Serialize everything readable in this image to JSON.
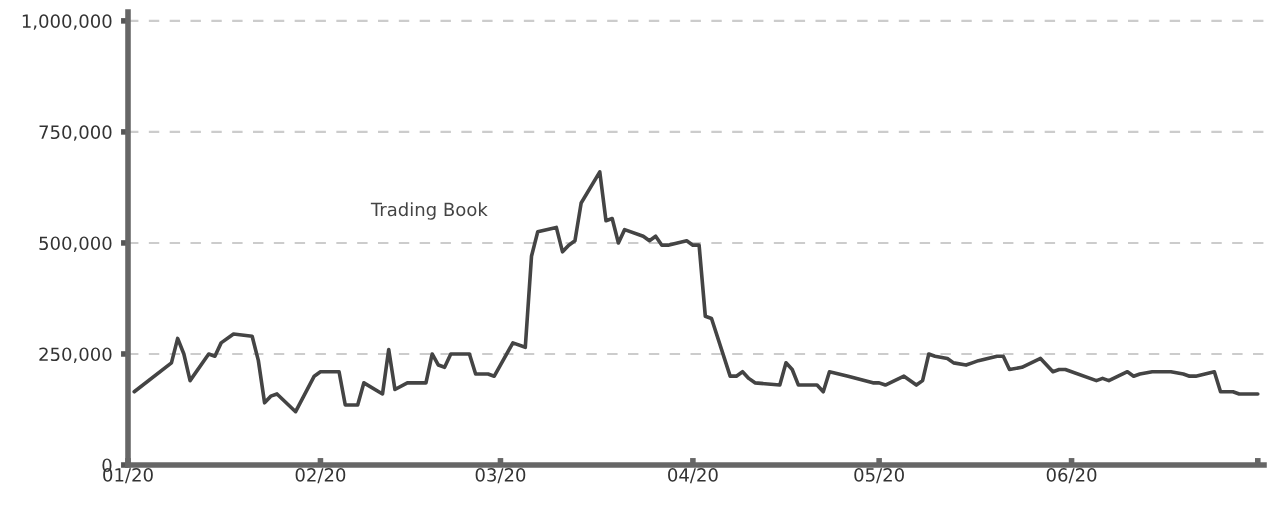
{
  "chart_data": {
    "type": "line",
    "x": [
      "2020-01-02",
      "2020-01-08",
      "2020-01-09",
      "2020-01-10",
      "2020-01-11",
      "2020-01-14",
      "2020-01-15",
      "2020-01-16",
      "2020-01-18",
      "2020-01-21",
      "2020-01-22",
      "2020-01-23",
      "2020-01-24",
      "2020-01-25",
      "2020-01-28",
      "2020-01-31",
      "2020-02-01",
      "2020-02-04",
      "2020-02-05",
      "2020-02-07",
      "2020-02-08",
      "2020-02-11",
      "2020-02-12",
      "2020-02-13",
      "2020-02-15",
      "2020-02-18",
      "2020-02-19",
      "2020-02-20",
      "2020-02-21",
      "2020-02-22",
      "2020-02-25",
      "2020-02-26",
      "2020-02-28",
      "2020-02-29",
      "2020-03-03",
      "2020-03-05",
      "2020-03-06",
      "2020-03-07",
      "2020-03-10",
      "2020-03-11",
      "2020-03-12",
      "2020-03-13",
      "2020-03-14",
      "2020-03-17",
      "2020-03-18",
      "2020-03-19",
      "2020-03-20",
      "2020-03-21",
      "2020-03-24",
      "2020-03-25",
      "2020-03-26",
      "2020-03-27",
      "2020-03-28",
      "2020-03-31",
      "2020-04-01",
      "2020-04-02",
      "2020-04-03",
      "2020-04-04",
      "2020-04-07",
      "2020-04-08",
      "2020-04-09",
      "2020-04-10",
      "2020-04-11",
      "2020-04-15",
      "2020-04-16",
      "2020-04-17",
      "2020-04-18",
      "2020-04-21",
      "2020-04-22",
      "2020-04-23",
      "2020-04-26",
      "2020-04-30",
      "2020-05-01",
      "2020-05-02",
      "2020-05-05",
      "2020-05-07",
      "2020-05-08",
      "2020-05-09",
      "2020-05-10",
      "2020-05-12",
      "2020-05-13",
      "2020-05-15",
      "2020-05-16",
      "2020-05-17",
      "2020-05-20",
      "2020-05-21",
      "2020-05-22",
      "2020-05-24",
      "2020-05-27",
      "2020-05-29",
      "2020-05-30",
      "2020-05-31",
      "2020-06-05",
      "2020-06-06",
      "2020-06-07",
      "2020-06-10",
      "2020-06-11",
      "2020-06-12",
      "2020-06-14",
      "2020-06-17",
      "2020-06-19",
      "2020-06-20",
      "2020-06-21",
      "2020-06-24",
      "2020-06-25",
      "2020-06-27",
      "2020-06-28",
      "2020-07-01"
    ],
    "series": [
      {
        "name": "Trading Book",
        "color": "#444444",
        "values": [
          165000,
          230000,
          285000,
          250000,
          190000,
          250000,
          245000,
          275000,
          295000,
          290000,
          235000,
          140000,
          155000,
          160000,
          120000,
          200000,
          210000,
          210000,
          135000,
          135000,
          185000,
          160000,
          260000,
          170000,
          185000,
          185000,
          250000,
          225000,
          220000,
          250000,
          250000,
          205000,
          205000,
          200000,
          275000,
          265000,
          470000,
          525000,
          535000,
          480000,
          495000,
          505000,
          590000,
          660000,
          550000,
          555000,
          500000,
          530000,
          515000,
          505000,
          515000,
          495000,
          495000,
          505000,
          495000,
          495000,
          335000,
          330000,
          200000,
          200000,
          210000,
          195000,
          185000,
          180000,
          230000,
          215000,
          180000,
          180000,
          165000,
          210000,
          200000,
          185000,
          185000,
          180000,
          200000,
          180000,
          190000,
          250000,
          245000,
          240000,
          230000,
          225000,
          230000,
          235000,
          245000,
          245000,
          215000,
          220000,
          240000,
          210000,
          215000,
          215000,
          190000,
          195000,
          190000,
          210000,
          200000,
          205000,
          210000,
          210000,
          205000,
          200000,
          200000,
          210000,
          165000,
          165000,
          160000,
          160000
        ]
      }
    ],
    "xlim": [
      "2020-01-01",
      "2020-07-02"
    ],
    "xticks": [
      {
        "value": "2020-01-01",
        "label": "01/20"
      },
      {
        "value": "2020-02-01",
        "label": "02/20"
      },
      {
        "value": "2020-03-01",
        "label": "03/20"
      },
      {
        "value": "2020-04-01",
        "label": "04/20"
      },
      {
        "value": "2020-05-01",
        "label": "05/20"
      },
      {
        "value": "2020-06-01",
        "label": "06/20"
      },
      {
        "value": "2020-07-01",
        "label": null
      }
    ],
    "ylim": [
      0,
      1020000
    ],
    "yticks": [
      0,
      {
        "value": 250000,
        "label": "250,000"
      },
      {
        "value": 500000,
        "label": "500,000"
      },
      {
        "value": 750000,
        "label": "750,000"
      },
      {
        "value": 1000000,
        "label": "1,000,000"
      }
    ],
    "grid": "y",
    "line_style": "solid"
  }
}
